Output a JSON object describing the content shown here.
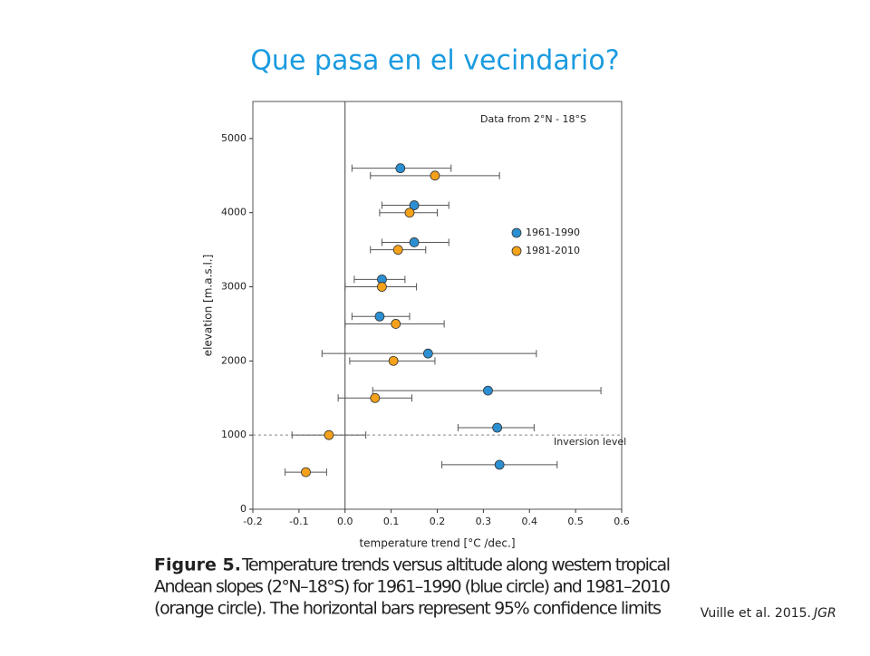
{
  "slide_title": "Que pasa en el vecindario?",
  "chart_data": {
    "type": "scatter",
    "annotation": "Data from 2°N - 18°S",
    "reference_label": "Inversion level",
    "reference_y": 1000,
    "reference_x": 0,
    "xlabel": "temperature trend [°C /dec.]",
    "ylabel": "elevation [m.a.s.l.]",
    "xlim": [
      -0.2,
      0.6
    ],
    "ylim": [
      0,
      5500
    ],
    "xticks": [
      -0.2,
      -0.1,
      {
        "value": 0,
        "label": "0.0"
      },
      0.1,
      0.2,
      0.3,
      0.4,
      0.5,
      0.6
    ],
    "yticks": [
      0,
      1000,
      2000,
      3000,
      4000,
      5000
    ],
    "legend": "upper right",
    "series": [
      {
        "name": "1961-1990",
        "color": "#2b8fd1",
        "x": [
          0.12,
          0.15,
          0.15,
          0.08,
          0.075,
          0.18,
          0.31,
          0.33,
          0.335
        ],
        "values": [
          4600,
          4100,
          3600,
          3100,
          2600,
          2100,
          1600,
          1100,
          600
        ],
        "xmin": [
          0.015,
          0.08,
          0.08,
          0.02,
          0.015,
          -0.05,
          0.06,
          0.245,
          0.21
        ],
        "xmax": [
          0.23,
          0.225,
          0.225,
          0.13,
          0.14,
          0.415,
          0.555,
          0.41,
          0.46
        ]
      },
      {
        "name": "1981-2010",
        "color": "#f5a21b",
        "x": [
          0.195,
          0.14,
          0.115,
          0.08,
          0.11,
          0.105,
          0.065,
          -0.035,
          -0.085
        ],
        "values": [
          4500,
          4000,
          3500,
          3000,
          2500,
          2000,
          1500,
          1000,
          500
        ],
        "xmin": [
          0.055,
          0.075,
          0.055,
          0.0,
          0.0,
          0.01,
          -0.015,
          -0.115,
          -0.13
        ],
        "xmax": [
          0.335,
          0.2,
          0.175,
          0.155,
          0.215,
          0.195,
          0.145,
          0.045,
          -0.04
        ]
      }
    ]
  },
  "caption": {
    "label": "Figure 5.",
    "lines": [
      "Temperature trends versus altitude along western tropical",
      "Andean slopes (2°N–18°S) for 1961–1990 (blue circle) and 1981–2010",
      "(orange circle). The horizontal bars represent 95% confidence limits"
    ]
  },
  "citation": {
    "text": "Vuille et al. 2015.",
    "journal": "JGR"
  }
}
